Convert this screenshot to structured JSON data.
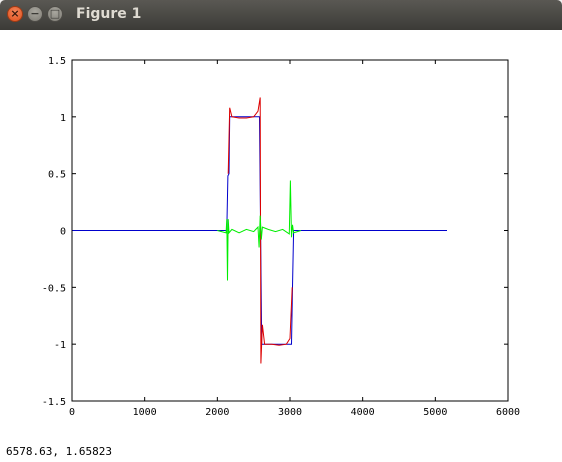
{
  "window": {
    "title": "Figure 1"
  },
  "status": {
    "coordinates": "6578.63,  1.65823"
  },
  "colors": {
    "series_blue": "#0000cc",
    "series_red": "#dd0000",
    "series_green": "#00ee00",
    "close_button": "#e95420"
  },
  "icons": {
    "close": "close-icon",
    "minimize": "minimize-icon",
    "maximize": "maximize-icon"
  },
  "chart_data": {
    "type": "line",
    "title": "",
    "xlabel": "",
    "ylabel": "",
    "xlim": [
      0,
      6000
    ],
    "ylim": [
      -1.5,
      1.5
    ],
    "xticks": [
      "0",
      "1000",
      "2000",
      "3000",
      "4000",
      "5000",
      "6000"
    ],
    "yticks": [
      "1.5",
      "1",
      "0.5",
      "0",
      "-0.5",
      "-1",
      "-1.5"
    ],
    "grid": false,
    "series": [
      {
        "color": "#0000cc",
        "x": [
          0,
          2130,
          2145,
          2160,
          2170,
          2580,
          2595,
          2610,
          3020,
          3035,
          3050,
          5160
        ],
        "y": [
          0,
          0,
          0.48,
          0.5,
          1.0,
          1.0,
          0,
          -1.0,
          -1.0,
          -0.5,
          0,
          0
        ]
      },
      {
        "color": "#dd0000",
        "x": [
          2150,
          2170,
          2200,
          2300,
          2400,
          2500,
          2560,
          2590,
          2600,
          2620,
          2650,
          2750,
          2850,
          2950,
          3000,
          3030
        ],
        "y": [
          0.5,
          1.08,
          1.0,
          0.99,
          0.99,
          1.0,
          1.05,
          1.17,
          -1.17,
          -0.83,
          -1.0,
          -1.0,
          -1.01,
          -1.0,
          -0.95,
          -0.5
        ]
      },
      {
        "color": "#00ee00",
        "x": [
          2000,
          2120,
          2130,
          2140,
          2150,
          2160,
          2200,
          2300,
          2400,
          2500,
          2560,
          2575,
          2590,
          2605,
          2620,
          2700,
          2800,
          2900,
          2990,
          3005,
          3020,
          3035,
          3050,
          3150
        ],
        "y": [
          0,
          -0.02,
          0.1,
          -0.44,
          0.1,
          -0.02,
          0.01,
          -0.02,
          0.01,
          -0.01,
          0.03,
          -0.15,
          0.13,
          -0.08,
          0.03,
          0.01,
          -0.01,
          0.01,
          -0.03,
          0.44,
          -0.06,
          0.05,
          -0.02,
          0
        ]
      }
    ]
  }
}
